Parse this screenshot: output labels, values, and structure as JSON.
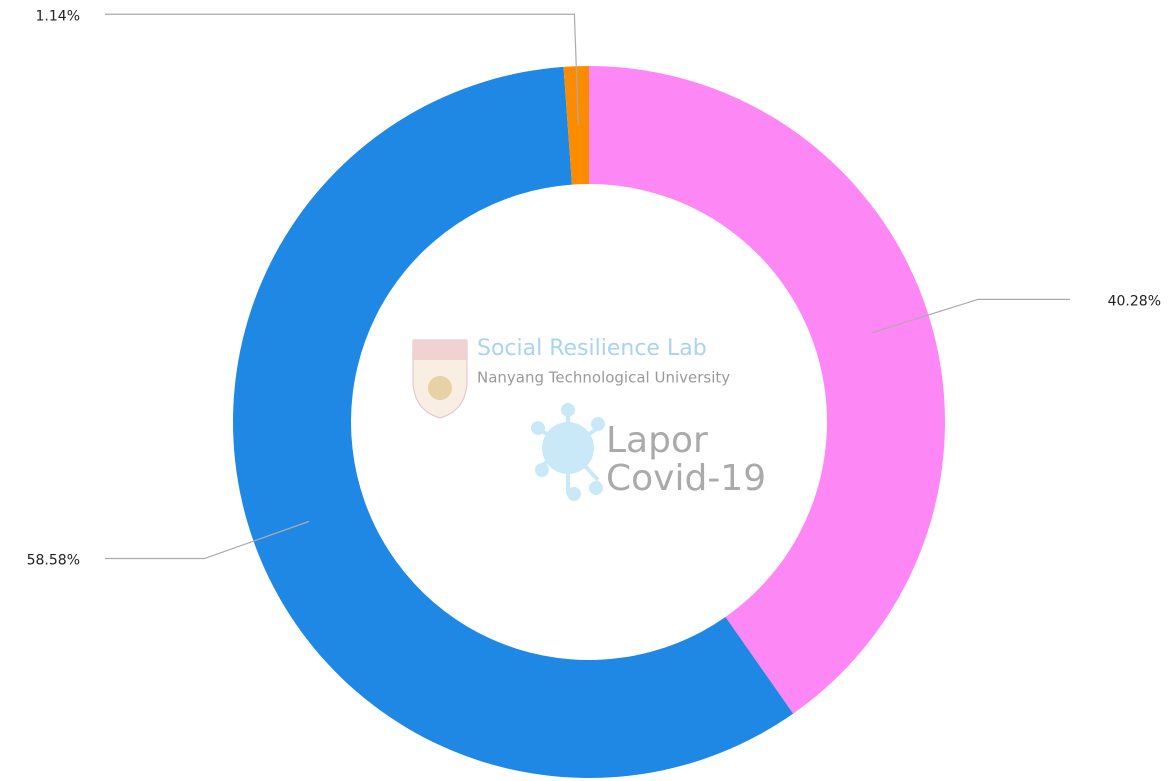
{
  "chart_data": {
    "type": "donut",
    "values": [
      40.28,
      58.58,
      1.14
    ],
    "value_labels": [
      "40.28%",
      "58.58%",
      "1.14%"
    ],
    "colors": [
      "#fd88f5",
      "#1f88e5",
      "#fb8c00"
    ],
    "watermark": [
      "Social Resilience Lab",
      "Nanyang Technological University",
      "Lapor",
      "Covid-19"
    ]
  }
}
